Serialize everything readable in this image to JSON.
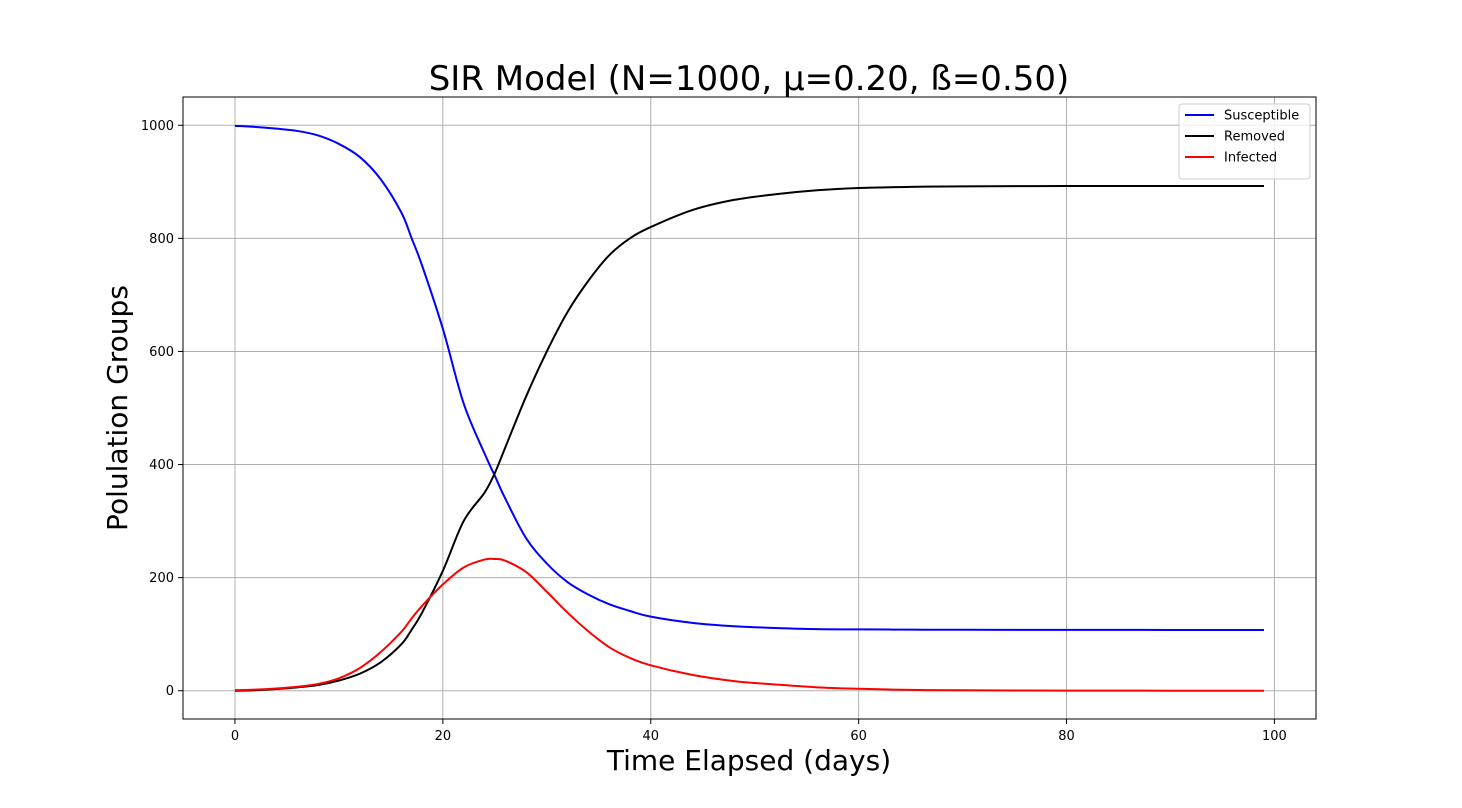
{
  "chart_data": {
    "type": "line",
    "title": "SIR Model (N=1000, μ=0.20, ß=0.50)",
    "xlabel": "Time Elapsed (days)",
    "ylabel": "Polulation Groups",
    "xlim": [
      -5,
      104
    ],
    "ylim": [
      -50,
      1050
    ],
    "xticks": [
      0,
      20,
      40,
      60,
      80,
      100
    ],
    "yticks": [
      0,
      200,
      400,
      600,
      800,
      1000
    ],
    "grid": true,
    "legend": "top-right",
    "x": [
      0,
      2,
      4,
      6,
      8,
      10,
      12,
      14,
      16,
      17,
      18,
      20,
      22,
      24,
      25,
      26,
      28,
      30,
      32,
      34,
      36,
      38,
      40,
      44,
      48,
      52,
      56,
      60,
      65,
      70,
      80,
      90,
      99
    ],
    "series": [
      {
        "name": "Susceptible",
        "color": "#0000ff",
        "values": [
          999,
          997,
          994,
          990,
          982,
          967,
          944,
          905,
          846,
          800,
          752,
          640,
          508,
          420,
          380,
          340,
          270,
          225,
          192,
          170,
          153,
          141,
          131,
          120,
          114,
          111,
          109,
          108.5,
          108,
          107.8,
          107.6,
          107.5,
          107.5
        ]
      },
      {
        "name": "Removed",
        "color": "#000000",
        "values": [
          0,
          1,
          3,
          6,
          10,
          18,
          30,
          50,
          82,
          108,
          138,
          212,
          300,
          350,
          385,
          430,
          520,
          600,
          670,
          725,
          770,
          800,
          820,
          850,
          868,
          878,
          885,
          889,
          891,
          892,
          892.5,
          892.5,
          892.5
        ]
      },
      {
        "name": "Infected",
        "color": "#ff0000",
        "values": [
          1,
          2,
          4,
          7,
          12,
          22,
          40,
          68,
          104,
          128,
          150,
          188,
          218,
          232,
          233,
          230,
          210,
          175,
          138,
          105,
          77,
          58,
          45,
          28,
          17,
          11,
          6,
          3.5,
          1.5,
          0.8,
          0.2,
          0.05,
          0.01
        ]
      }
    ]
  }
}
